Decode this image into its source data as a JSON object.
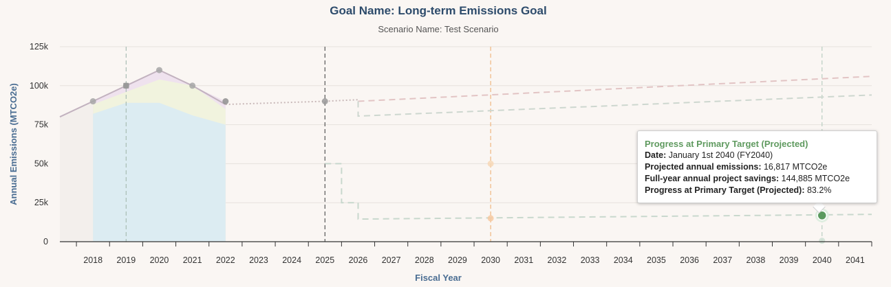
{
  "chart_data": {
    "type": "line",
    "title": "Goal Name: Long-term Emissions Goal",
    "subtitle": "Scenario Name: Test Scenario",
    "xlabel": "Fiscal Year",
    "ylabel": "Annual Emissions (MTCO2e)",
    "x_categories": [
      "2018",
      "2019",
      "2020",
      "2021",
      "2022",
      "2023",
      "2024",
      "2025",
      "2026",
      "2027",
      "2028",
      "2029",
      "2030",
      "2031",
      "2032",
      "2033",
      "2034",
      "2035",
      "2036",
      "2037",
      "2038",
      "2039",
      "2040",
      "2041"
    ],
    "y_ticks": [
      "0",
      "25k",
      "50k",
      "75k",
      "100k",
      "125k"
    ],
    "ylim": [
      0,
      125000
    ],
    "grid": true,
    "area_bands": [
      {
        "color": "#dcecf2",
        "x": [
          2018.0,
          2019.0,
          2020.0,
          2021.0,
          2022.0
        ],
        "y": [
          82000,
          89000,
          89000,
          81000,
          75000
        ]
      },
      {
        "color": "#f1f3de",
        "x": [
          2018.0,
          2019.0,
          2020.0,
          2021.0,
          2022.0
        ],
        "y": [
          88000,
          96000,
          104000,
          100000,
          85000
        ]
      },
      {
        "color": "#efe2ee",
        "x": [
          2018.0,
          2019.0,
          2020.0,
          2021.0,
          2022.0
        ],
        "y": [
          90000,
          100000,
          110000,
          100000,
          90000
        ]
      }
    ],
    "historical": {
      "color": "#c2b2bf",
      "points": [
        [
          2017.0,
          80000
        ],
        [
          2018.0,
          90000
        ],
        [
          2019.0,
          100000
        ],
        [
          2020.0,
          110000
        ],
        [
          2021.0,
          100000
        ],
        [
          2022.0,
          88000
        ]
      ]
    },
    "projection_link": {
      "color": "#c8b8b8",
      "points": [
        [
          2022.0,
          88000
        ],
        [
          2025.0,
          90000
        ],
        [
          2026.0,
          91000
        ]
      ]
    },
    "bau_projection": {
      "color": "#e2c4c4",
      "points": [
        [
          2026.0,
          90000
        ],
        [
          2041.5,
          106000
        ]
      ]
    },
    "reduced_projection": {
      "color": "#cdd7cf",
      "points": [
        [
          2026.0,
          90000
        ],
        [
          2026.0,
          80500
        ],
        [
          2041.5,
          94000
        ]
      ]
    },
    "target_path": {
      "color": "#c8d8cd",
      "points": [
        [
          2025.0,
          50000
        ],
        [
          2025.5,
          50000
        ],
        [
          2025.5,
          25000
        ],
        [
          2026.0,
          25000
        ],
        [
          2026.0,
          14500
        ],
        [
          2041.5,
          17500
        ]
      ]
    },
    "reference_lines": [
      {
        "x": 2019.0,
        "color": "#a8bdb4"
      },
      {
        "x": 2025.0,
        "color": "#555555"
      },
      {
        "x": 2030.0,
        "color": "#f0b67f"
      },
      {
        "x": 2040.0,
        "color": "#b9cfc1"
      }
    ],
    "markers": [
      {
        "x": 2018.0,
        "y": 90000,
        "color": "#a6a6a6"
      },
      {
        "x": 2019.0,
        "y": 100000,
        "color": "#999999"
      },
      {
        "x": 2020.0,
        "y": 110000,
        "color": "#a6a6a6"
      },
      {
        "x": 2021.0,
        "y": 100000,
        "color": "#a6a6a6"
      },
      {
        "x": 2022.0,
        "y": 90000,
        "color": "#8f8f8f"
      },
      {
        "x": 2025.0,
        "y": 90000,
        "color": "#9a9a9a"
      },
      {
        "x": 2030.0,
        "y": 50000,
        "color": "#f7d8b6"
      },
      {
        "x": 2030.0,
        "y": 15000,
        "color": "#f7c9a0"
      },
      {
        "x": 2040.0,
        "y": 600,
        "color": "#cfe0d3"
      }
    ],
    "highlight_point": {
      "x": 2040.0,
      "y": 16817,
      "color": "#5a9a5e"
    }
  },
  "tooltip": {
    "title": "Progress at Primary Target (Projected)",
    "date_label": "Date:",
    "date_value": " January 1st 2040 (FY2040)",
    "emissions_label": "Projected annual emissions:",
    "emissions_value": " 16,817 MTCO2e",
    "savings_label": "Full-year annual project savings:",
    "savings_value": " 144,885 MTCO2e",
    "progress_label": "Progress at Primary Target (Projected):",
    "progress_value": " 83.2%"
  }
}
